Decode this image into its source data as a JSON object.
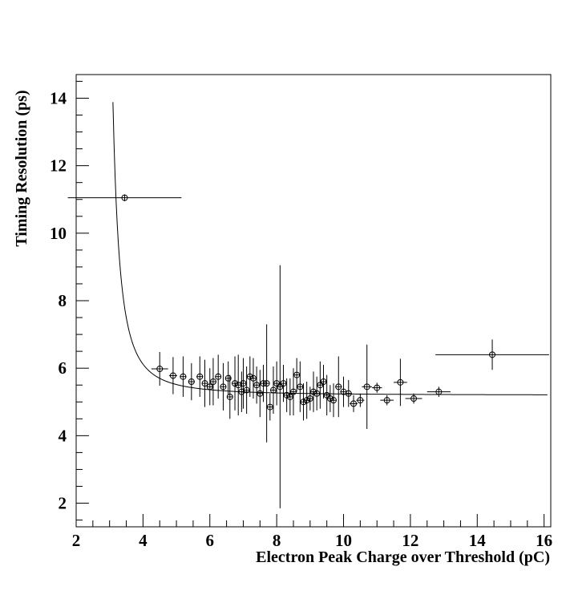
{
  "chart_data": {
    "type": "scatter",
    "title": "",
    "xlabel": "Electron Peak Charge over Threshold (pC)",
    "ylabel": "Timing Resolution (ps)",
    "xlim": [
      2,
      16.2
    ],
    "ylim": [
      1.3,
      14.7
    ],
    "x_ticks": [
      2,
      4,
      6,
      8,
      10,
      12,
      14,
      16
    ],
    "y_ticks": [
      2,
      4,
      6,
      8,
      10,
      12,
      14
    ],
    "grid": false,
    "legend": "none",
    "marker_color": "#000000",
    "series": [
      {
        "x": [
          3.45,
          4.5,
          4.9,
          5.2,
          5.45,
          5.7,
          5.85,
          6.0,
          6.1,
          6.25,
          6.4,
          6.55,
          6.6,
          6.75,
          6.85,
          6.95,
          7.0,
          7.1,
          7.2,
          7.3,
          7.4,
          7.5,
          7.6,
          7.7,
          7.8,
          7.9,
          8.0,
          8.1,
          8.2,
          8.3,
          8.4,
          8.5,
          8.6,
          8.7,
          8.8,
          8.9,
          9.0,
          9.1,
          9.2,
          9.3,
          9.4,
          9.5,
          9.6,
          9.7,
          9.85,
          10.0,
          10.15,
          10.3,
          10.5,
          10.7,
          11.0,
          11.3,
          11.7,
          12.1,
          12.85,
          14.45
        ],
        "y": [
          11.05,
          5.98,
          5.78,
          5.75,
          5.6,
          5.75,
          5.55,
          5.45,
          5.6,
          5.75,
          5.45,
          5.7,
          5.15,
          5.55,
          5.5,
          5.3,
          5.55,
          5.35,
          5.75,
          5.7,
          5.5,
          5.25,
          5.55,
          5.55,
          4.85,
          5.35,
          5.55,
          5.45,
          5.55,
          5.2,
          5.15,
          5.3,
          5.8,
          5.45,
          5.0,
          5.05,
          5.1,
          5.3,
          5.25,
          5.5,
          5.6,
          5.2,
          5.1,
          5.05,
          5.45,
          5.3,
          5.25,
          4.95,
          5.05,
          5.45,
          5.42,
          5.05,
          5.58,
          5.1,
          5.3,
          6.4
        ],
        "xerr": [
          1.7,
          0.25,
          0.12,
          0.1,
          0.1,
          0.1,
          0.08,
          0.08,
          0.08,
          0.08,
          0.08,
          0.08,
          0.08,
          0.08,
          0.08,
          0.08,
          0.08,
          0.08,
          0.08,
          0.08,
          0.08,
          0.08,
          0.08,
          0.08,
          0.08,
          0.08,
          0.08,
          0.08,
          0.08,
          0.08,
          0.08,
          0.08,
          0.08,
          0.08,
          0.08,
          0.08,
          0.08,
          0.08,
          0.08,
          0.08,
          0.08,
          0.08,
          0.08,
          0.08,
          0.1,
          0.1,
          0.1,
          0.12,
          0.12,
          0.15,
          0.15,
          0.2,
          0.2,
          0.25,
          0.35,
          1.7
        ],
        "yerr": [
          0.1,
          0.5,
          0.55,
          0.6,
          0.55,
          0.6,
          0.7,
          0.55,
          0.7,
          0.65,
          0.7,
          0.5,
          0.65,
          0.8,
          0.9,
          0.6,
          0.75,
          0.7,
          0.6,
          0.6,
          0.55,
          0.7,
          0.55,
          1.75,
          0.4,
          0.7,
          0.65,
          3.6,
          0.55,
          0.5,
          0.55,
          0.7,
          0.5,
          0.75,
          0.55,
          0.55,
          0.35,
          0.6,
          0.5,
          0.7,
          0.5,
          0.6,
          0.4,
          0.5,
          0.9,
          0.45,
          0.4,
          0.25,
          0.2,
          1.25,
          0.15,
          0.15,
          0.7,
          0.15,
          0.15,
          0.45
        ]
      }
    ],
    "fit_curve": {
      "form": "y = 5.2 + a / (x - x0)^p",
      "a": 1.45,
      "x0": 2.72,
      "p": 1.85,
      "x_range": [
        3.1,
        16.1
      ]
    }
  }
}
